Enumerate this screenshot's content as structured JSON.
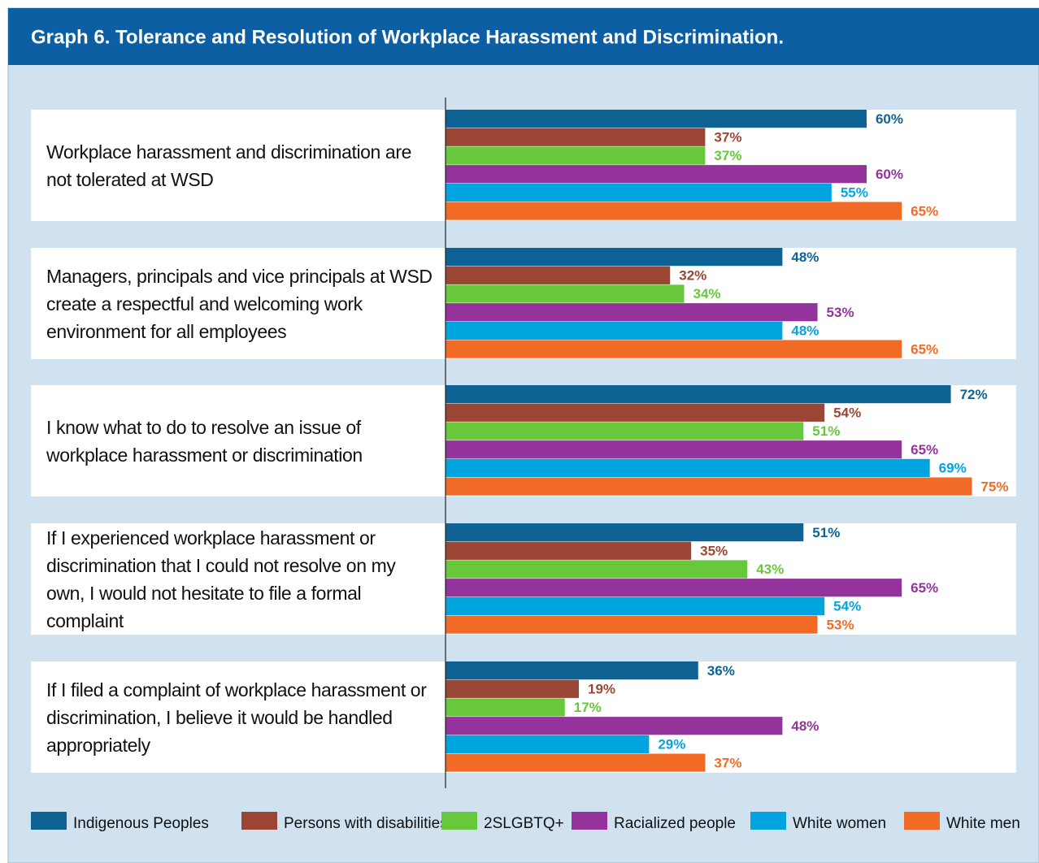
{
  "chart_data": {
    "type": "bar",
    "orientation": "horizontal",
    "title": "Graph 6. Tolerance and Resolution of Workplace Harassment and Discrimination.",
    "categories": [
      "Workplace harassment and discrimination are not tolerated at WSD",
      "Managers, principals and vice principals at WSD create a respectful and welcoming work environment for all employees",
      "I know what to do to resolve an issue of workplace harassment or discrimination",
      "If I experienced workplace harassment or discrimination that I could not resolve on my own, I would not hesitate to file a formal complaint",
      "If I filed a complaint of workplace harassment or discrimination, I believe it would be handled appropriately"
    ],
    "series": [
      {
        "name": "Indigenous Peoples",
        "color": "#0e6394",
        "values": [
          60,
          48,
          72,
          51,
          36
        ],
        "value_labels": [
          "60%",
          "48%",
          "72%",
          "51%",
          "36%"
        ]
      },
      {
        "name": "Persons with disabilities",
        "color": "#9b4634",
        "values": [
          37,
          32,
          54,
          35,
          19
        ],
        "value_labels": [
          "37%",
          "32%",
          "54%",
          "35%",
          "19%"
        ]
      },
      {
        "name": "2SLGBTQ+",
        "color": "#67c83b",
        "values": [
          37,
          34,
          51,
          43,
          17
        ],
        "value_labels": [
          "37%",
          "34%",
          "51%",
          "43%",
          "17%"
        ]
      },
      {
        "name": "Racialized people",
        "color": "#93339b",
        "values": [
          60,
          53,
          65,
          65,
          48
        ],
        "value_labels": [
          "60%",
          "53%",
          "65%",
          "65%",
          "48%"
        ]
      },
      {
        "name": "White women",
        "color": "#00a5e0",
        "values": [
          55,
          48,
          69,
          54,
          29
        ],
        "value_labels": [
          "55%",
          "48%",
          "69%",
          "54%",
          "29%"
        ]
      },
      {
        "name": "White men",
        "color": "#f26b26",
        "values": [
          65,
          65,
          75,
          53,
          37
        ],
        "value_labels": [
          "65%",
          "65%",
          "75%",
          "53%",
          "37%"
        ]
      }
    ],
    "xlim": [
      0,
      100
    ],
    "legend": "bottom"
  }
}
